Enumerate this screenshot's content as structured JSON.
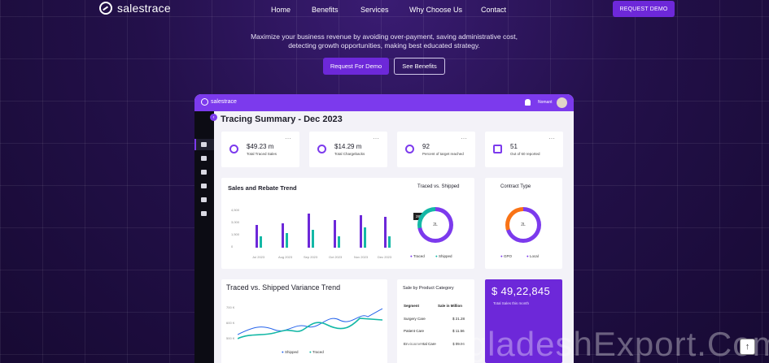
{
  "brand": {
    "name": "salestrace"
  },
  "nav": {
    "items": [
      "Home",
      "Benefits",
      "Services",
      "Why Choose Us",
      "Contact"
    ],
    "cta": "REQUEST DEMO"
  },
  "hero": {
    "subtitle_line1": "Maximize your business revenue by avoiding over-payment, saving administrative cost,",
    "subtitle_line2": "detecting growth opportunities, making best educated strategy.",
    "primary_button": "Request For Demo",
    "secondary_button": "See Benefits"
  },
  "dashboard": {
    "brand": "salestrace",
    "user": "Nomant",
    "collapse_icon": "chevron-left-icon",
    "title": "Tracing Summary - Dec 2023",
    "kpis": [
      {
        "value": "$49.23 m",
        "label": "Total Traced Sales",
        "icon": "diamond-icon"
      },
      {
        "value": "$14.29 m",
        "label": "Total Chargebacks",
        "icon": "refund-icon"
      },
      {
        "value": "92",
        "label": "Percent of target reached",
        "icon": "target-icon"
      },
      {
        "value": "51",
        "label": "Out of 60 reported",
        "icon": "building-icon"
      }
    ],
    "sales_rebate": {
      "title": "Sales and Rebate Trend",
      "y_ticks": [
        "4,500",
        "3,000",
        "1,500",
        "0"
      ],
      "x_ticks": [
        "Jul 2023",
        "Aug 2023",
        "Sep 2023",
        "Oct 2023",
        "Nov 2023",
        "Dec 2023"
      ]
    },
    "traced_shipped": {
      "title": "Traced vs. Shipped",
      "badge": "28%",
      "center": "2L",
      "legend": [
        "Traced",
        "Shipped"
      ]
    },
    "contract_type": {
      "title": "Contract Type",
      "center": "2L",
      "legend": [
        "GPO",
        "Local"
      ]
    },
    "variance": {
      "title": "Traced vs. Shipped Variance Trend",
      "y_ticks": [
        "700 K",
        "600 K",
        "500 K"
      ],
      "legend": [
        "Shipped",
        "Traced"
      ]
    },
    "by_category": {
      "title": "Sale by Product Category",
      "headers": [
        "Segment",
        "Sale in Million"
      ],
      "rows": [
        {
          "segment": "Surgery Care",
          "value": "$ 21.28"
        },
        {
          "segment": "Patient Care",
          "value": "$ 11.56"
        },
        {
          "segment": "Environmental Care",
          "value": "$ 09.96"
        }
      ]
    },
    "total_sales": {
      "value": "$ 49,22,845",
      "label": "Total Sales this month"
    }
  },
  "watermark": "BangladeshExport.Com",
  "colors": {
    "accent": "#7c3aed",
    "teal": "#14b8a6",
    "background": "#1d0e3c"
  }
}
